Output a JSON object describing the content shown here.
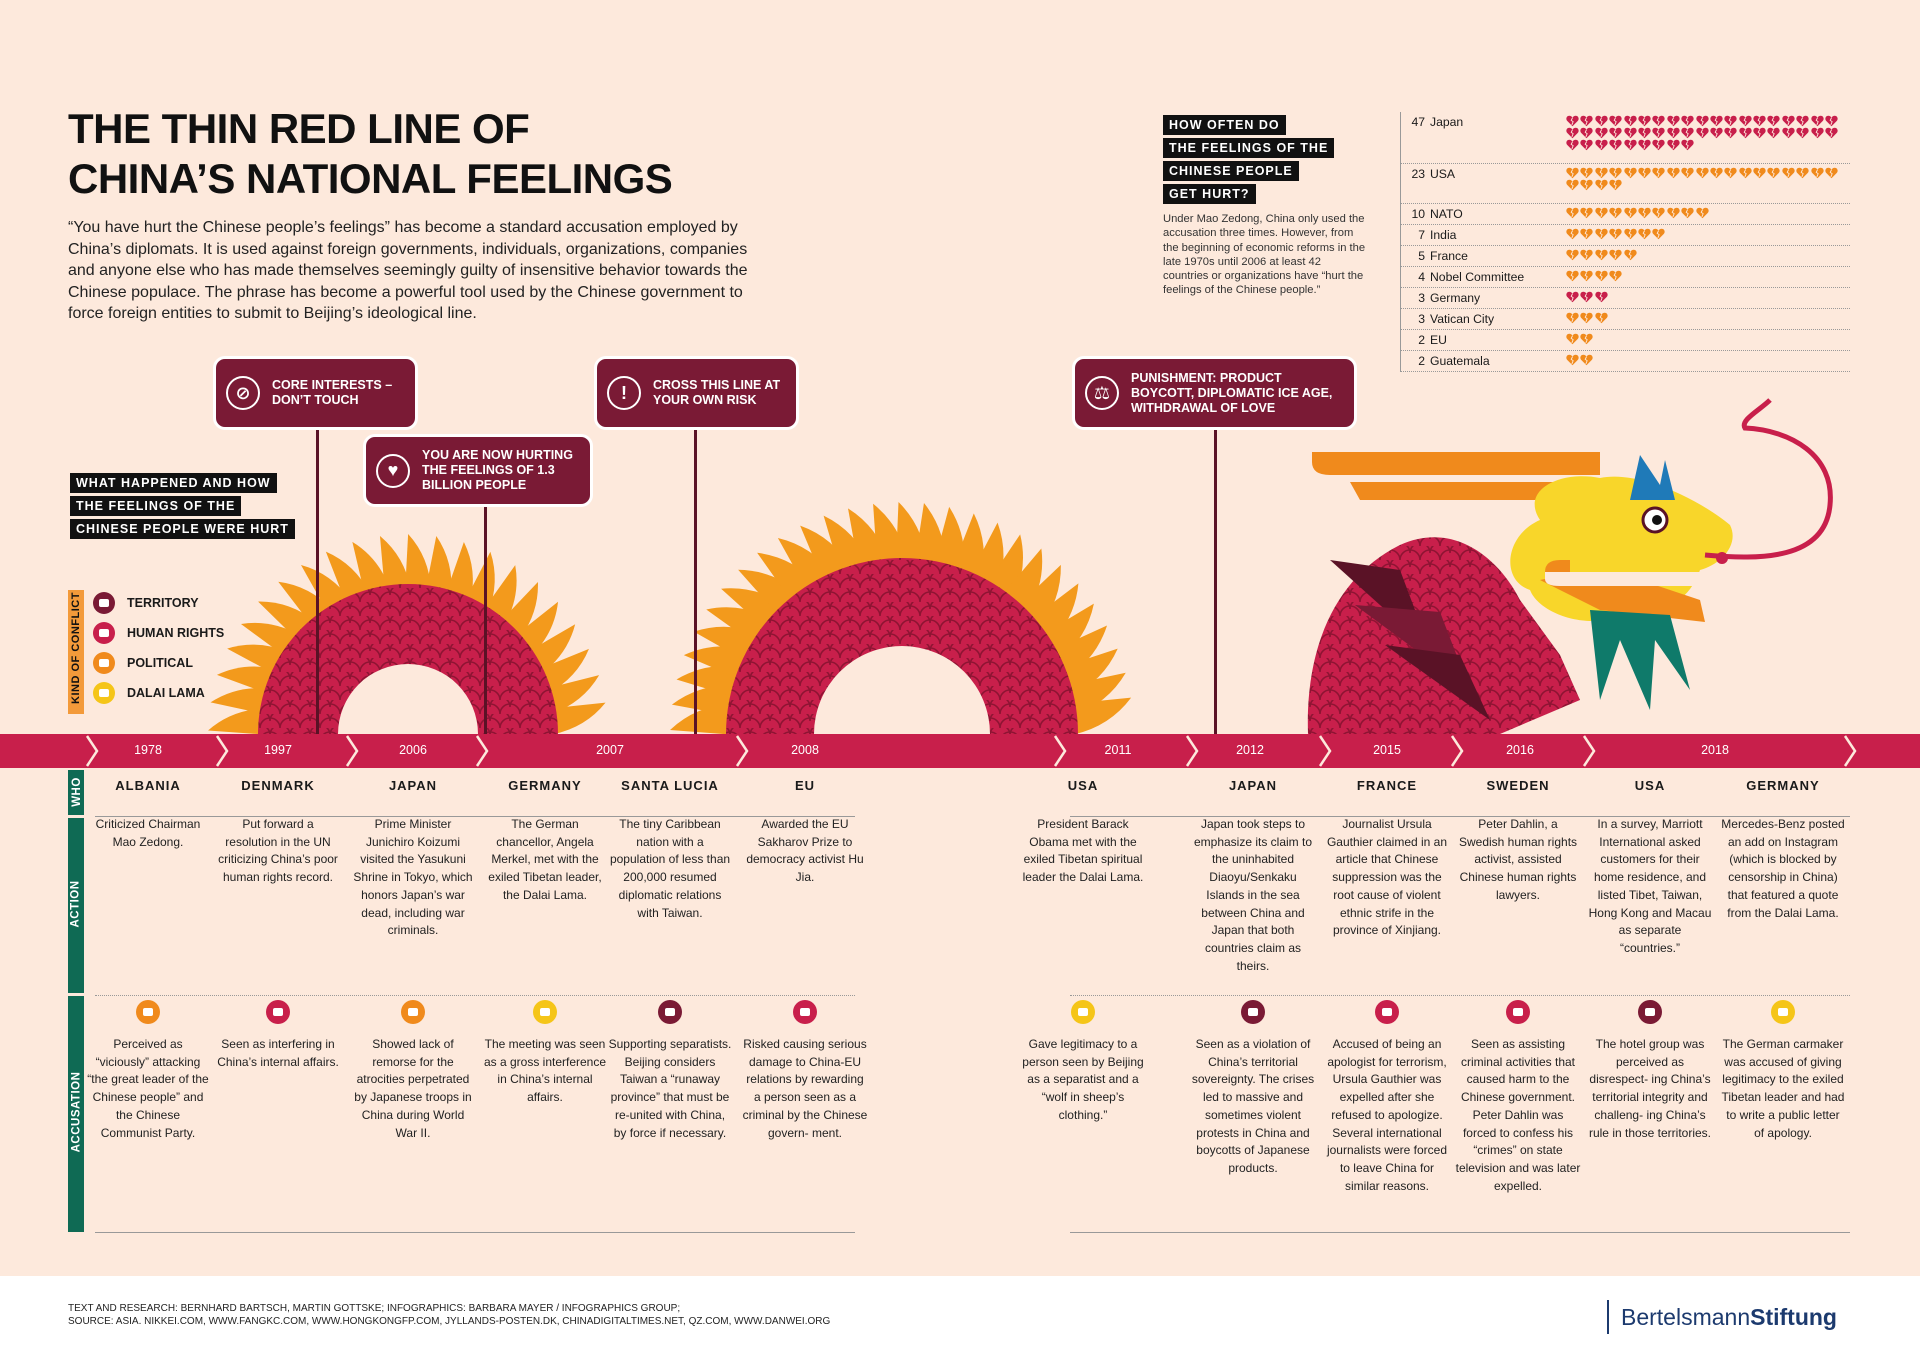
{
  "title": {
    "line1": "THE THIN RED LINE OF",
    "line2": "CHINA’S NATIONAL FEELINGS"
  },
  "intro": "“You have hurt the Chinese people’s feelings” has become a standard accusation employed by China’s diplomats. It is used against foreign governments, individuals, organizations, companies and anyone else who has made themselves seemingly guilty of insensitive behavior towards the Chinese populace. The phrase has become a powerful tool used by the Chinese government to force foreign entities to submit to Beijing’s ideological line.",
  "how_often": {
    "label": [
      "HOW OFTEN DO",
      "THE FEELINGS OF THE",
      "CHINESE PEOPLE",
      "GET HURT?"
    ],
    "note": "Under Mao Zedong, China only used the accusation three times. However, from the beginning of economic reforms in the late 1970s until 2006 at least 42 countries or organizations have “hurt the feelings of the Chinese people.”"
  },
  "ranking": [
    {
      "count": 47,
      "name": "Japan",
      "color": "#c81f4b"
    },
    {
      "count": 23,
      "name": "USA",
      "color": "#f08a1c"
    },
    {
      "count": 10,
      "name": "NATO",
      "color": "#f08a1c"
    },
    {
      "count": 7,
      "name": "India",
      "color": "#f08a1c"
    },
    {
      "count": 5,
      "name": "France",
      "color": "#f08a1c"
    },
    {
      "count": 4,
      "name": "Nobel Committee",
      "color": "#f08a1c"
    },
    {
      "count": 3,
      "name": "Germany",
      "color": "#c81f4b"
    },
    {
      "count": 3,
      "name": "Vatican City",
      "color": "#f08a1c"
    },
    {
      "count": 2,
      "name": "EU",
      "color": "#f08a1c"
    },
    {
      "count": 2,
      "name": "Guatemala",
      "color": "#f08a1c"
    }
  ],
  "what_happened": [
    "WHAT HAPPENED AND HOW",
    "THE FEELINGS OF THE",
    "CHINESE PEOPLE WERE HURT"
  ],
  "boxes": {
    "core": "CORE INTERESTS – DON’T TOUCH",
    "hurting": "YOU ARE NOW HURTING THE FEELINGS OF 1.3 BILLION PEOPLE",
    "cross": "CROSS THIS LINE AT YOUR OWN RISK",
    "punish": "PUNISHMENT: PRODUCT BOYCOTT, DIPLOMATIC ICE AGE, WITHDRAWAL OF LOVE"
  },
  "legend": {
    "title": "KIND OF CONFLICT",
    "items": [
      {
        "label": "TERRITORY",
        "color": "#7a1a35"
      },
      {
        "label": "HUMAN RIGHTS",
        "color": "#c81f4b"
      },
      {
        "label": "POLITICAL",
        "color": "#f08a1c"
      },
      {
        "label": "DALAI LAMA",
        "color": "#f5c518"
      }
    ]
  },
  "years": [
    {
      "label": "1978"
    },
    {
      "label": "1997"
    },
    {
      "label": "2006"
    },
    {
      "label": "2007"
    },
    {
      "label": "2008"
    },
    {
      "label": "2011"
    },
    {
      "label": "2012"
    },
    {
      "label": "2015"
    },
    {
      "label": "2016"
    },
    {
      "label": "2018"
    }
  ],
  "row_labels": {
    "who": "WHO",
    "action": "ACTION",
    "accusation": "ACCUSATION"
  },
  "events": [
    {
      "who": "ALBANIA",
      "action": "Criticized Chairman Mao Zedong.",
      "kind_color": "#f08a1c",
      "accusation": "Perceived as “viciously” attacking “the great leader of the Chinese people” and the Chinese Communist Party."
    },
    {
      "who": "DENMARK",
      "action": "Put forward a resolution in the UN criticizing China’s poor human rights record.",
      "kind_color": "#c81f4b",
      "accusation": "Seen as interfering in China’s internal affairs."
    },
    {
      "who": "JAPAN",
      "action": "Prime Minister Junichiro Koizumi visited the Yasukuni Shrine in Tokyo, which honors Japan’s war dead, including war criminals.",
      "kind_color": "#f08a1c",
      "accusation": "Showed lack of remorse for the atrocities perpetrated by Japanese troops in China during World War II."
    },
    {
      "who": "GERMANY",
      "action": "The German chancellor, Angela Merkel, met with the exiled Tibetan leader, the Dalai Lama.",
      "kind_color": "#f5c518",
      "accusation": "The meeting was seen as a gross interference in China’s internal affairs."
    },
    {
      "who": "SANTA LUCIA",
      "action": "The tiny Caribbean nation with a population of less than 200,000 resumed diplomatic relations with Taiwan.",
      "kind_color": "#7a1a35",
      "accusation": "Supporting separatists. Beijing considers Taiwan a “runaway province” that must be re-united with China, by force if necessary."
    },
    {
      "who": "EU",
      "action": "Awarded the EU Sakharov Prize to democracy activist Hu Jia.",
      "kind_color": "#c81f4b",
      "accusation": "Risked causing serious damage to China-EU relations by rewarding a person seen as a criminal by the Chinese govern- ment."
    },
    {
      "who": "USA",
      "action": "President Barack Obama met with the exiled Tibetan spiritual leader the Dalai Lama.",
      "kind_color": "#f5c518",
      "accusation": "Gave legitimacy to a person seen by Beijing as a separatist and a “wolf in sheep’s clothing.”"
    },
    {
      "who": "JAPAN",
      "action": "Japan took steps to emphasize its claim to the uninhabited Diaoyu/Senkaku Islands in the sea between China and Japan that both countries claim as theirs.",
      "kind_color": "#7a1a35",
      "accusation": "Seen as a violation of China’s territorial sovereignty. The crises led to massive and sometimes violent protests in China and boycotts of Japanese products."
    },
    {
      "who": "FRANCE",
      "action": "Journalist Ursula Gauthier claimed in an article that Chinese suppression was the root cause of violent ethnic strife in the province of Xinjiang.",
      "kind_color": "#c81f4b",
      "accusation": "Accused of being an apologist for terrorism, Ursula Gauthier was expelled after she refused to apologize. Several international journalists were forced to leave China for similar reasons."
    },
    {
      "who": "SWEDEN",
      "action": "Peter Dahlin, a Swedish human rights activist, assisted Chinese human rights lawyers.",
      "kind_color": "#c81f4b",
      "accusation": "Seen as assisting criminal activities that caused harm to the Chinese government. Peter Dahlin was forced to confess his “crimes” on state television and was later expelled."
    },
    {
      "who": "USA",
      "action": "In a survey, Marriott International asked customers for their home residence, and listed Tibet, Taiwan, Hong Kong and Macau as separate “countries.”",
      "kind_color": "#7a1a35",
      "accusation": "The hotel group was perceived as disrespect- ing China’s territorial integrity and challeng- ing China’s rule in those territories."
    },
    {
      "who": "GERMANY",
      "action": "Mercedes-Benz posted an add on Instagram (which is blocked by censorship in China) that featured a quote from the Dalai Lama.",
      "kind_color": "#f5c518",
      "accusation": "The German carmaker was accused of giving legitimacy to the exiled Tibetan leader and had to write a public letter of apology."
    }
  ],
  "footer": {
    "credits1": "TEXT AND RESEARCH: BERNHARD BARTSCH, MARTIN GOTTSKE; INFOGRAPHICS: BARBARA MAYER / INFOGRAPHICS GROUP;",
    "credits2": "SOURCE: ASIA. NIKKEI.COM, WWW.FANGKC.COM, WWW.HONGKONGFP.COM, JYLLANDS-POSTEN.DK, CHINADIGITALTIMES.NET, QZ.COM, WWW.DANWEI.ORG",
    "logo_a": "Bertelsmann",
    "logo_b": "Stiftung"
  }
}
